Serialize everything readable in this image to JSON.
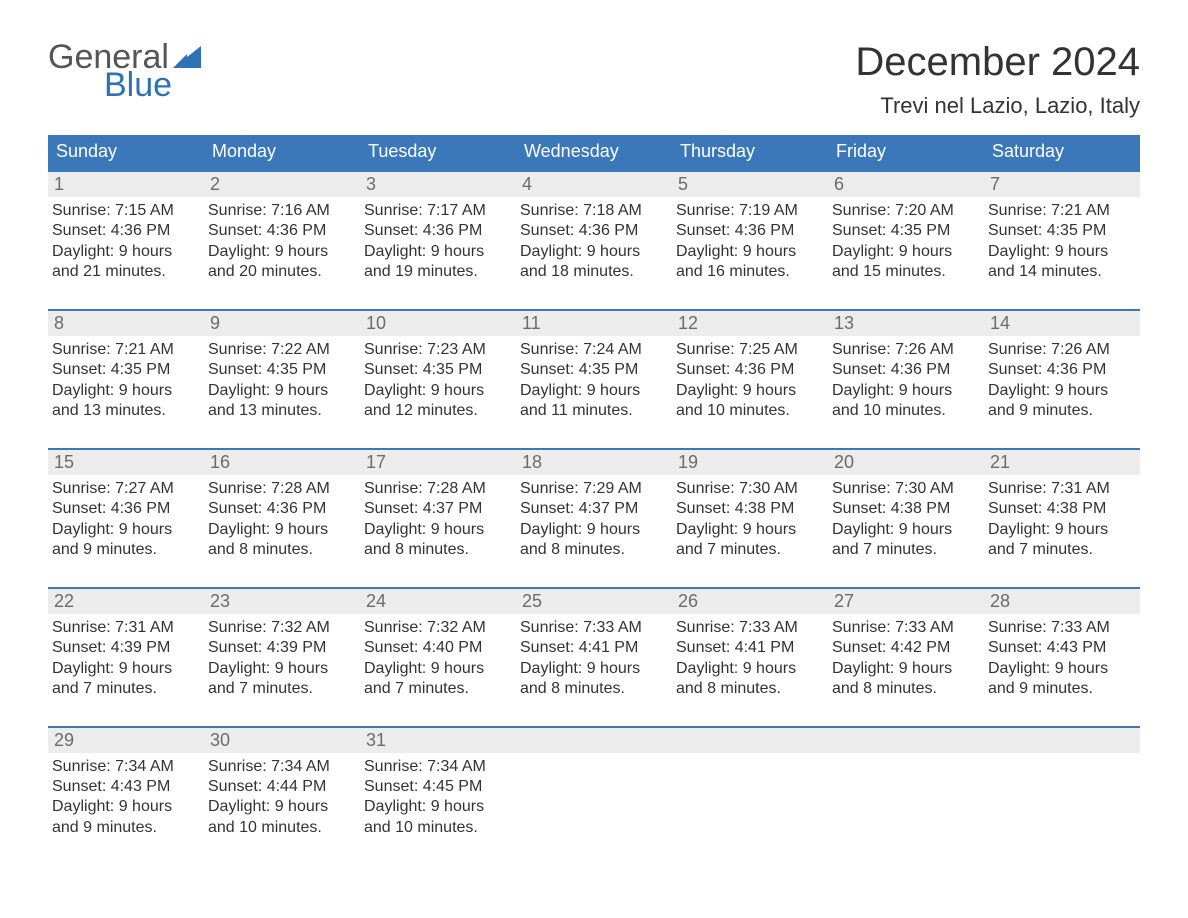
{
  "logo": {
    "word1": "General",
    "word2": "Blue",
    "flag_color": "#2e72b6",
    "word1_color": "#555555"
  },
  "title": "December 2024",
  "location": "Trevi nel Lazio, Lazio, Italy",
  "colors": {
    "header_bg": "#3a78b9",
    "header_text": "#ffffff",
    "daynum_bg": "#ececec",
    "daynum_text": "#6b6b6b",
    "body_text": "#333333",
    "week_border": "#3a78b9",
    "page_bg": "#ffffff"
  },
  "typography": {
    "title_fontsize": 40,
    "location_fontsize": 22,
    "weekday_fontsize": 18,
    "daynum_fontsize": 18,
    "body_fontsize": 16,
    "font_family": "Arial"
  },
  "weekdays": [
    "Sunday",
    "Monday",
    "Tuesday",
    "Wednesday",
    "Thursday",
    "Friday",
    "Saturday"
  ],
  "weeks": [
    [
      {
        "n": "1",
        "sunrise": "Sunrise: 7:15 AM",
        "sunset": "Sunset: 4:36 PM",
        "d1": "Daylight: 9 hours",
        "d2": "and 21 minutes."
      },
      {
        "n": "2",
        "sunrise": "Sunrise: 7:16 AM",
        "sunset": "Sunset: 4:36 PM",
        "d1": "Daylight: 9 hours",
        "d2": "and 20 minutes."
      },
      {
        "n": "3",
        "sunrise": "Sunrise: 7:17 AM",
        "sunset": "Sunset: 4:36 PM",
        "d1": "Daylight: 9 hours",
        "d2": "and 19 minutes."
      },
      {
        "n": "4",
        "sunrise": "Sunrise: 7:18 AM",
        "sunset": "Sunset: 4:36 PM",
        "d1": "Daylight: 9 hours",
        "d2": "and 18 minutes."
      },
      {
        "n": "5",
        "sunrise": "Sunrise: 7:19 AM",
        "sunset": "Sunset: 4:36 PM",
        "d1": "Daylight: 9 hours",
        "d2": "and 16 minutes."
      },
      {
        "n": "6",
        "sunrise": "Sunrise: 7:20 AM",
        "sunset": "Sunset: 4:35 PM",
        "d1": "Daylight: 9 hours",
        "d2": "and 15 minutes."
      },
      {
        "n": "7",
        "sunrise": "Sunrise: 7:21 AM",
        "sunset": "Sunset: 4:35 PM",
        "d1": "Daylight: 9 hours",
        "d2": "and 14 minutes."
      }
    ],
    [
      {
        "n": "8",
        "sunrise": "Sunrise: 7:21 AM",
        "sunset": "Sunset: 4:35 PM",
        "d1": "Daylight: 9 hours",
        "d2": "and 13 minutes."
      },
      {
        "n": "9",
        "sunrise": "Sunrise: 7:22 AM",
        "sunset": "Sunset: 4:35 PM",
        "d1": "Daylight: 9 hours",
        "d2": "and 13 minutes."
      },
      {
        "n": "10",
        "sunrise": "Sunrise: 7:23 AM",
        "sunset": "Sunset: 4:35 PM",
        "d1": "Daylight: 9 hours",
        "d2": "and 12 minutes."
      },
      {
        "n": "11",
        "sunrise": "Sunrise: 7:24 AM",
        "sunset": "Sunset: 4:35 PM",
        "d1": "Daylight: 9 hours",
        "d2": "and 11 minutes."
      },
      {
        "n": "12",
        "sunrise": "Sunrise: 7:25 AM",
        "sunset": "Sunset: 4:36 PM",
        "d1": "Daylight: 9 hours",
        "d2": "and 10 minutes."
      },
      {
        "n": "13",
        "sunrise": "Sunrise: 7:26 AM",
        "sunset": "Sunset: 4:36 PM",
        "d1": "Daylight: 9 hours",
        "d2": "and 10 minutes."
      },
      {
        "n": "14",
        "sunrise": "Sunrise: 7:26 AM",
        "sunset": "Sunset: 4:36 PM",
        "d1": "Daylight: 9 hours",
        "d2": "and 9 minutes."
      }
    ],
    [
      {
        "n": "15",
        "sunrise": "Sunrise: 7:27 AM",
        "sunset": "Sunset: 4:36 PM",
        "d1": "Daylight: 9 hours",
        "d2": "and 9 minutes."
      },
      {
        "n": "16",
        "sunrise": "Sunrise: 7:28 AM",
        "sunset": "Sunset: 4:36 PM",
        "d1": "Daylight: 9 hours",
        "d2": "and 8 minutes."
      },
      {
        "n": "17",
        "sunrise": "Sunrise: 7:28 AM",
        "sunset": "Sunset: 4:37 PM",
        "d1": "Daylight: 9 hours",
        "d2": "and 8 minutes."
      },
      {
        "n": "18",
        "sunrise": "Sunrise: 7:29 AM",
        "sunset": "Sunset: 4:37 PM",
        "d1": "Daylight: 9 hours",
        "d2": "and 8 minutes."
      },
      {
        "n": "19",
        "sunrise": "Sunrise: 7:30 AM",
        "sunset": "Sunset: 4:38 PM",
        "d1": "Daylight: 9 hours",
        "d2": "and 7 minutes."
      },
      {
        "n": "20",
        "sunrise": "Sunrise: 7:30 AM",
        "sunset": "Sunset: 4:38 PM",
        "d1": "Daylight: 9 hours",
        "d2": "and 7 minutes."
      },
      {
        "n": "21",
        "sunrise": "Sunrise: 7:31 AM",
        "sunset": "Sunset: 4:38 PM",
        "d1": "Daylight: 9 hours",
        "d2": "and 7 minutes."
      }
    ],
    [
      {
        "n": "22",
        "sunrise": "Sunrise: 7:31 AM",
        "sunset": "Sunset: 4:39 PM",
        "d1": "Daylight: 9 hours",
        "d2": "and 7 minutes."
      },
      {
        "n": "23",
        "sunrise": "Sunrise: 7:32 AM",
        "sunset": "Sunset: 4:39 PM",
        "d1": "Daylight: 9 hours",
        "d2": "and 7 minutes."
      },
      {
        "n": "24",
        "sunrise": "Sunrise: 7:32 AM",
        "sunset": "Sunset: 4:40 PM",
        "d1": "Daylight: 9 hours",
        "d2": "and 7 minutes."
      },
      {
        "n": "25",
        "sunrise": "Sunrise: 7:33 AM",
        "sunset": "Sunset: 4:41 PM",
        "d1": "Daylight: 9 hours",
        "d2": "and 8 minutes."
      },
      {
        "n": "26",
        "sunrise": "Sunrise: 7:33 AM",
        "sunset": "Sunset: 4:41 PM",
        "d1": "Daylight: 9 hours",
        "d2": "and 8 minutes."
      },
      {
        "n": "27",
        "sunrise": "Sunrise: 7:33 AM",
        "sunset": "Sunset: 4:42 PM",
        "d1": "Daylight: 9 hours",
        "d2": "and 8 minutes."
      },
      {
        "n": "28",
        "sunrise": "Sunrise: 7:33 AM",
        "sunset": "Sunset: 4:43 PM",
        "d1": "Daylight: 9 hours",
        "d2": "and 9 minutes."
      }
    ],
    [
      {
        "n": "29",
        "sunrise": "Sunrise: 7:34 AM",
        "sunset": "Sunset: 4:43 PM",
        "d1": "Daylight: 9 hours",
        "d2": "and 9 minutes."
      },
      {
        "n": "30",
        "sunrise": "Sunrise: 7:34 AM",
        "sunset": "Sunset: 4:44 PM",
        "d1": "Daylight: 9 hours",
        "d2": "and 10 minutes."
      },
      {
        "n": "31",
        "sunrise": "Sunrise: 7:34 AM",
        "sunset": "Sunset: 4:45 PM",
        "d1": "Daylight: 9 hours",
        "d2": "and 10 minutes."
      },
      {
        "empty": true
      },
      {
        "empty": true
      },
      {
        "empty": true
      },
      {
        "empty": true
      }
    ]
  ]
}
